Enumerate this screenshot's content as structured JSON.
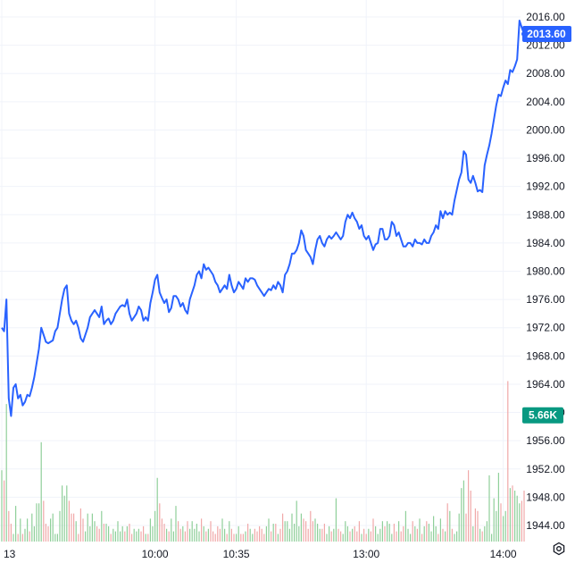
{
  "chart_data": {
    "type": "line",
    "title": "",
    "xlabel": "",
    "ylabel": "",
    "ylim": [
      1941.0,
      2018.5
    ],
    "grid": true,
    "y_ticks": [
      "2016.00",
      "2012.00",
      "2008.00",
      "2004.00",
      "2000.00",
      "1996.00",
      "1992.00",
      "1988.00",
      "1984.00",
      "1980.00",
      "1976.00",
      "1972.00",
      "1968.00",
      "1964.00",
      "1960.00",
      "1956.00",
      "1952.00",
      "1948.00",
      "1944.00"
    ],
    "y_tick_values": [
      2016,
      2012,
      2008,
      2004,
      2000,
      1996,
      1992,
      1988,
      1984,
      1980,
      1976,
      1972,
      1968,
      1964,
      1960,
      1956,
      1952,
      1948,
      1944
    ],
    "x_ticks": [
      "13",
      "10:00",
      "10:35",
      "13:00",
      "14:00"
    ],
    "x_tick_index": [
      0,
      66,
      101,
      157,
      216
    ],
    "last_price": {
      "label": "2013.60",
      "value": 2013.6,
      "color": "#2962ff"
    },
    "last_volume": {
      "label": "5.66K",
      "value": 5.66,
      "color": "#089981"
    },
    "series": [
      {
        "color": "#2962ff",
        "values": [
          1972,
          1971.5,
          1976,
          1962,
          1959.5,
          1963.5,
          1964,
          1962,
          1962.5,
          1961,
          1961.5,
          1962.5,
          1962.3,
          1963.5,
          1965,
          1967,
          1969,
          1972,
          1971,
          1970,
          1969.8,
          1970,
          1970.2,
          1971.5,
          1972,
          1974,
          1976,
          1977.5,
          1978,
          1974,
          1973,
          1972.5,
          1973,
          1972,
          1970.5,
          1970,
          1971,
          1972,
          1973.5,
          1974,
          1974.5,
          1974,
          1973.5,
          1975,
          1972.5,
          1973,
          1973.3,
          1972.5,
          1973,
          1974,
          1974.5,
          1975,
          1975.2,
          1975,
          1976,
          1974,
          1973,
          1973.5,
          1974,
          1975,
          1974.5,
          1973,
          1973.5,
          1973,
          1975.5,
          1977,
          1978.8,
          1979.5,
          1977,
          1976.2,
          1975.5,
          1976,
          1974.2,
          1974.8,
          1976.5,
          1976.5,
          1976,
          1975,
          1975.5,
          1974.5,
          1974,
          1976,
          1977,
          1978,
          1979.5,
          1980,
          1979,
          1981,
          1980.2,
          1980.5,
          1980,
          1979.5,
          1978.5,
          1978,
          1977,
          1977.5,
          1978,
          1977.5,
          1979.5,
          1978,
          1977,
          1977.5,
          1978.5,
          1978,
          1977.5,
          1979,
          1978.5,
          1979,
          1979,
          1978.8,
          1978,
          1977.5,
          1977,
          1976.5,
          1977,
          1977.5,
          1977.3,
          1978,
          1977.5,
          1978.5,
          1978,
          1977,
          1979.5,
          1980,
          1981,
          1982.5,
          1982.5,
          1983,
          1984,
          1985.8,
          1985,
          1983,
          1982.5,
          1982,
          1981,
          1983,
          1984.5,
          1985,
          1984,
          1983.5,
          1984.5,
          1985,
          1984.6,
          1985,
          1985.5,
          1985,
          1984.5,
          1985,
          1987,
          1988,
          1987.5,
          1988.3,
          1987.5,
          1987,
          1986,
          1986.5,
          1985,
          1984.5,
          1985,
          1984,
          1983,
          1983.8,
          1984,
          1986,
          1986,
          1984.5,
          1984.5,
          1985,
          1987,
          1986.5,
          1985,
          1985.5,
          1984.5,
          1983.5,
          1983.5,
          1984,
          1984,
          1983.5,
          1984.5,
          1984,
          1984,
          1983.8,
          1984.5,
          1984,
          1984,
          1985,
          1985.5,
          1986.5,
          1986,
          1988.5,
          1987.5,
          1988.5,
          1988,
          1988.3,
          1988,
          1990,
          1991.5,
          1993,
          1994,
          1997,
          1996.5,
          1993,
          1992.5,
          1993.5,
          1992.5,
          1991.3,
          1991.5,
          1991.2,
          1995,
          1996.5,
          1997.8,
          1999.5,
          2001.5,
          2003.5,
          2005,
          2004.8,
          2006,
          2007,
          2006.5,
          2008.5,
          2008.2,
          2009,
          2010,
          2015.5,
          2014.5,
          2013.6
        ]
      },
      {
        "name": "",
        "unit": "K",
        "up_color": "#8fcf9a",
        "down_color": "#f0a8a8",
        "values": [
          2.8,
          2.4,
          5.4,
          1.2,
          0.7,
          0.3,
          1.4,
          0.3,
          0.9,
          0.3,
          0.5,
          0.9,
          0.4,
          1.1,
          0.6,
          1.5,
          1.5,
          3.9,
          1.6,
          0.7,
          0.6,
          0.9,
          1.1,
          0.3,
          0.3,
          1.2,
          2.2,
          1.8,
          2.2,
          1.6,
          1.1,
          1.1,
          0.8,
          0.3,
          1.3,
          0.9,
          0.4,
          1.1,
          0.6,
          1.1,
          0.8,
          0.6,
          0.5,
          1.2,
          0.7,
          0.7,
          0.6,
          0.3,
          0.5,
          0.4,
          0.8,
          0.4,
          0.6,
          0.4,
          0.6,
          0.7,
          0.3,
          0.5,
          0.4,
          0.5,
          0.4,
          0.6,
          0.3,
          0.3,
          0.9,
          0.6,
          1.2,
          2.5,
          1.5,
          0.9,
          0.7,
          0.5,
          0.4,
          0.9,
          0.4,
          1.4,
          0.8,
          0.5,
          0.6,
          0.4,
          0.8,
          0.5,
          0.8,
          0.5,
          0.7,
          0.4,
          0.9,
          0.6,
          0.4,
          0.5,
          0.8,
          0.4,
          0.3,
          0.6,
          0.5,
          0.9,
          0.5,
          0.3,
          0.8,
          0.5,
          0.3,
          0.3,
          0.6,
          0.3,
          0.3,
          0.4,
          0.7,
          0.5,
          0.3,
          0.5,
          0.4,
          0.6,
          0.5,
          0.3,
          0.6,
          0.9,
          0.4,
          0.7,
          0.7,
          0.3,
          0.5,
          1.1,
          0.8,
          0.8,
          0.5,
          1.1,
          0.7,
          1.6,
          0.6,
          1.1,
          0.9,
          0.8,
          0.5,
          1.2,
          0.8,
          0.9,
          0.7,
          0.5,
          0.5,
          0.7,
          0.3,
          0.6,
          0.4,
          0.5,
          1.7,
          0.5,
          0.4,
          0.3,
          0.8,
          0.6,
          0.4,
          0.5,
          0.6,
          0.4,
          0.8,
          0.3,
          0.5,
          0.3,
          0.5,
          0.4,
          0.9,
          0.6,
          0.3,
          0.5,
          0.8,
          0.6,
          0.8,
          0.7,
          0.3,
          0.7,
          0.4,
          0.8,
          0.4,
          0.6,
          1.2,
          0.5,
          0.3,
          0.8,
          0.6,
          0.5,
          0.9,
          0.3,
          0.6,
          0.8,
          0.7,
          0.4,
          1.0,
          0.6,
          0.3,
          0.9,
          0.5,
          0.4,
          1.5,
          1.2,
          0.5,
          0.3,
          0.4,
          1.1,
          2.1,
          2.4,
          1.1,
          2.8,
          2.0,
          0.6,
          1.3,
          1.2,
          0.5,
          0.4,
          0.6,
          0.8,
          2.6,
          0.3,
          1.7,
          1.2,
          2.7,
          1.5,
          1.0,
          1.2,
          6.3,
          2.1,
          2.2,
          2.0,
          1.8,
          1.5,
          1.6,
          2.0,
          5.6
        ]
      }
    ]
  },
  "controls": {
    "settings_icon": "gear-icon"
  }
}
